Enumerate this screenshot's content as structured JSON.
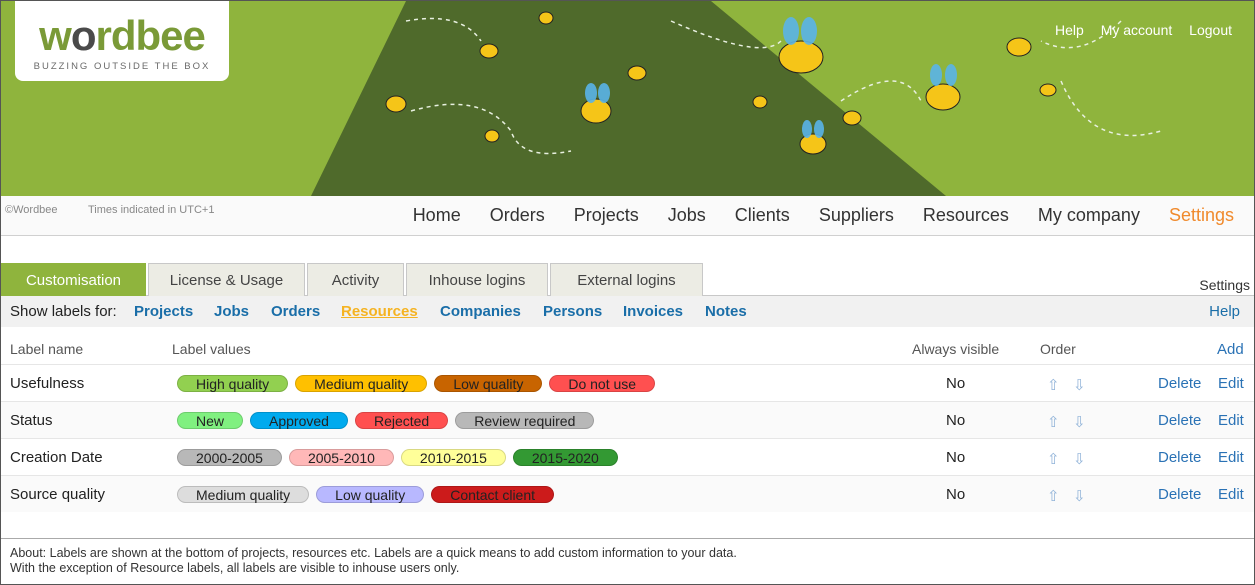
{
  "logo": {
    "brand": "wordbee",
    "tagline": "BUZZING OUTSIDE THE BOX"
  },
  "toplinks": [
    "Help",
    "My account",
    "Logout"
  ],
  "copyright": "©Wordbee",
  "timezone": "Times indicated in UTC+1",
  "nav": [
    {
      "label": "Home"
    },
    {
      "label": "Orders"
    },
    {
      "label": "Projects"
    },
    {
      "label": "Jobs"
    },
    {
      "label": "Clients"
    },
    {
      "label": "Suppliers"
    },
    {
      "label": "Resources"
    },
    {
      "label": "My company"
    },
    {
      "label": "Settings",
      "active": true
    }
  ],
  "tabs": [
    "Customisation",
    "License & Usage",
    "Activity",
    "Inhouse logins",
    "External logins"
  ],
  "settings_label": "Settings",
  "labelsbar": {
    "prefix": "Show labels for:",
    "items": [
      "Projects",
      "Jobs",
      "Orders",
      "Resources",
      "Companies",
      "Persons",
      "Invoices",
      "Notes"
    ],
    "active": "Resources",
    "help": "Help"
  },
  "table": {
    "headers": {
      "name": "Label name",
      "values": "Label values",
      "visible": "Always visible",
      "order": "Order",
      "add": "Add"
    },
    "rows": [
      {
        "name": "Usefulness",
        "visible": "No",
        "labels": [
          {
            "text": "High quality",
            "color": "#92d050"
          },
          {
            "text": "Medium quality",
            "color": "#ffc000"
          },
          {
            "text": "Low quality",
            "color": "#c86400"
          },
          {
            "text": "Do not use",
            "color": "#ff5050"
          }
        ]
      },
      {
        "name": "Status",
        "visible": "No",
        "labels": [
          {
            "text": "New",
            "color": "#80f080"
          },
          {
            "text": "Approved",
            "color": "#00aaee"
          },
          {
            "text": "Rejected",
            "color": "#ff5050"
          },
          {
            "text": "Review required",
            "color": "#b8b8b8"
          }
        ]
      },
      {
        "name": "Creation Date",
        "visible": "No",
        "labels": [
          {
            "text": "2000-2005",
            "color": "#b8b8b8"
          },
          {
            "text": "2005-2010",
            "color": "#ffb8b8"
          },
          {
            "text": "2010-2015",
            "color": "#ffff99"
          },
          {
            "text": "2015-2020",
            "color": "#339933"
          }
        ]
      },
      {
        "name": "Source quality",
        "visible": "No",
        "labels": [
          {
            "text": "Medium quality",
            "color": "#dddddd"
          },
          {
            "text": "Low quality",
            "color": "#b8b8ff"
          },
          {
            "text": "Contact client",
            "color": "#cc1b1b"
          }
        ]
      }
    ],
    "delete": "Delete",
    "edit": "Edit"
  },
  "about": [
    "About: Labels are shown at the bottom of projects, resources etc. Labels are a quick means to add custom information to your data.",
    "With the exception of Resource labels, all labels are visible to inhouse users only."
  ]
}
